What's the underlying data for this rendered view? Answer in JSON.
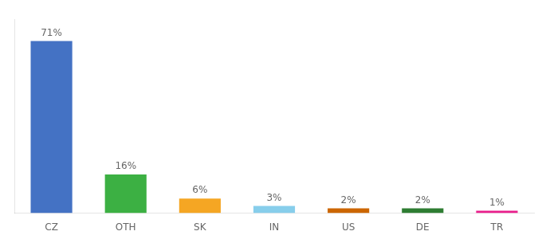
{
  "chart_data": {
    "type": "bar",
    "categories": [
      "CZ",
      "OTH",
      "SK",
      "IN",
      "US",
      "DE",
      "TR"
    ],
    "values": [
      71,
      16,
      6,
      3,
      2,
      2,
      1
    ],
    "value_labels": [
      "71%",
      "16%",
      "6%",
      "3%",
      "2%",
      "2%",
      "1%"
    ],
    "data_labels": true,
    "colors": [
      "#4472c4",
      "#3cb043",
      "#f5a623",
      "#87ceeb",
      "#cc6600",
      "#2e7d32",
      "#e91e8c"
    ],
    "ylim": [
      0,
      80
    ],
    "grid": false,
    "tick_labels": "x"
  }
}
